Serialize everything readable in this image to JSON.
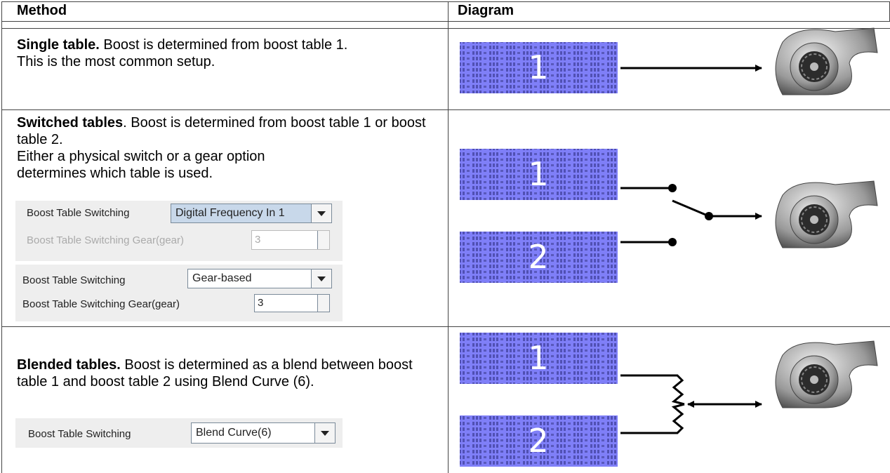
{
  "header": {
    "method": "Method",
    "diagram": "Diagram"
  },
  "rows": [
    {
      "lead": "Single table.",
      "text": " Boost is determined from boost table 1.",
      "lines": [
        "This is the most common setup."
      ],
      "tables": [
        "1"
      ]
    },
    {
      "lead": "Switched tables",
      "text": ". Boost is determined from boost table 1 or boost table 2.",
      "lines": [
        "Either a physical switch or a gear option",
        "determines which table is used."
      ],
      "settings": [
        [
          {
            "label": "Boost Table Switching",
            "value": "Digital Frequency In 1"
          },
          {
            "label": "Boost Table Switching Gear(gear)",
            "value": "3"
          }
        ],
        [
          {
            "label": "Boost Table Switching",
            "value": "Gear-based"
          },
          {
            "label": "Boost Table Switching Gear(gear)",
            "value": "3"
          }
        ]
      ],
      "tables": [
        "1",
        "2"
      ]
    },
    {
      "lead": "Blended tables.",
      "text": " Boost is determined as a blend between boost table 1 and boost table 2 using Blend Curve (6).",
      "settings": [
        [
          {
            "label": "Boost Table Switching",
            "value": "Blend Curve(6)"
          }
        ]
      ],
      "tables": [
        "1",
        "2"
      ]
    }
  ]
}
